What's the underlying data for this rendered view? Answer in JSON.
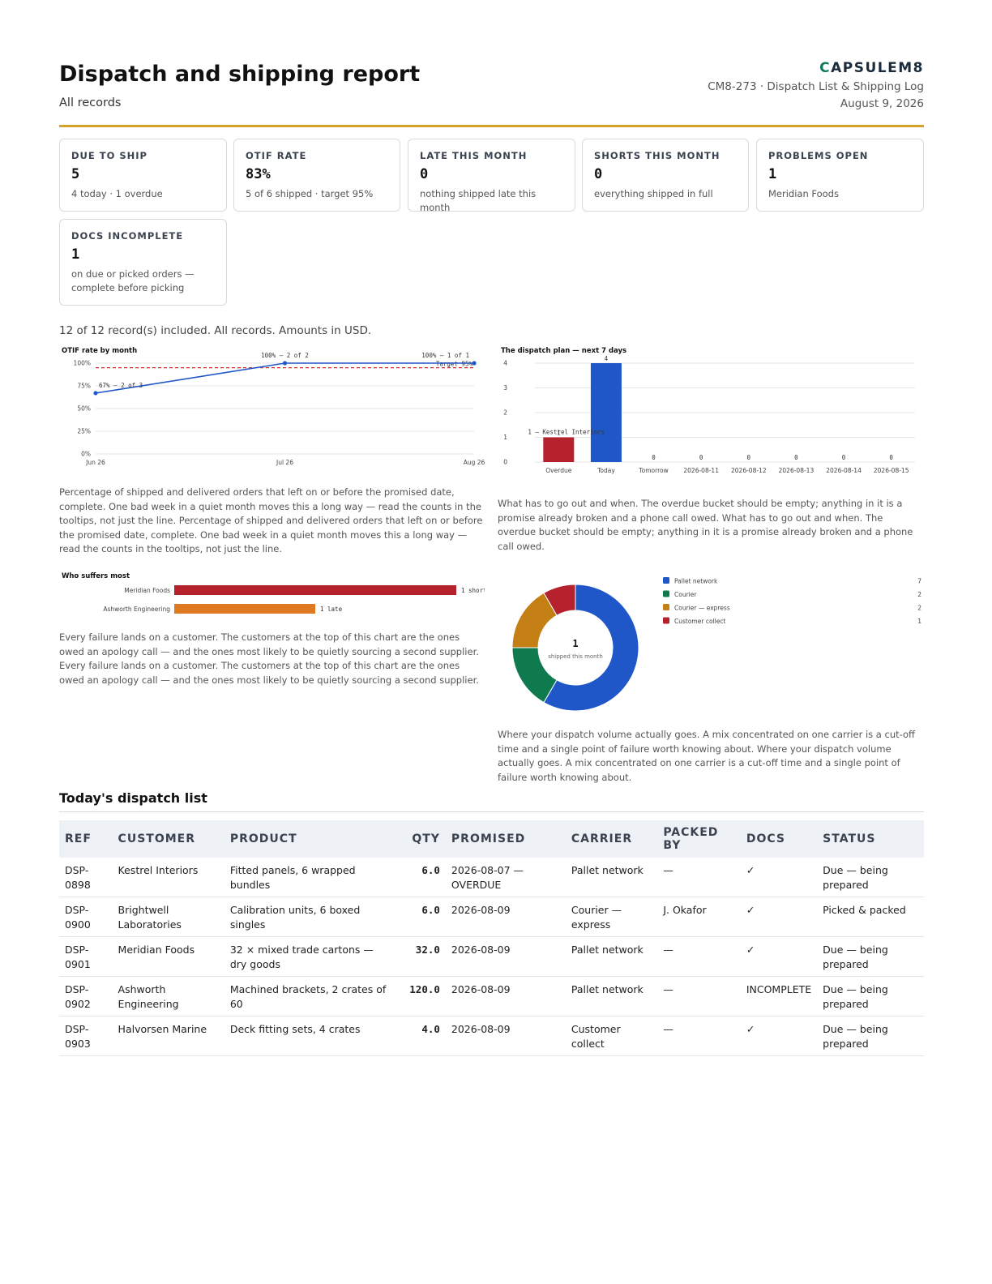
{
  "header": {
    "title": "Dispatch and shipping report",
    "subtitle": "All records",
    "brand_c": "C",
    "brand_rest": "APSULEM8",
    "doc_id": "CM8-273 · Dispatch List & Shipping Log",
    "date": "August 9, 2026"
  },
  "kpis": [
    {
      "label": "DUE TO SHIP",
      "value": "5",
      "note": "4 today · 1 overdue"
    },
    {
      "label": "OTIF RATE",
      "value": "83%",
      "note": "5 of 6 shipped · target 95%"
    },
    {
      "label": "LATE THIS MONTH",
      "value": "0",
      "note": "nothing shipped late this month"
    },
    {
      "label": "SHORTS THIS MONTH",
      "value": "0",
      "note": "everything shipped in full"
    },
    {
      "label": "PROBLEMS OPEN",
      "value": "1",
      "note": "Meridian Foods"
    },
    {
      "label": "DOCS INCOMPLETE",
      "value": "1",
      "note": "on due or picked orders — complete before picking"
    }
  ],
  "summary": "12 of 12 record(s) included. All records. Amounts in USD.",
  "chart_data": [
    {
      "type": "line",
      "title": "OTIF rate by month",
      "x": [
        "Jun 26",
        "Jul 26",
        "Aug 26"
      ],
      "values": [
        67,
        100,
        100
      ],
      "point_labels": [
        "67% — 2 of 3",
        "100% — 2 of 2",
        "100% — 1 of 1"
      ],
      "target": 95,
      "target_label": "Target 95%",
      "yticks": [
        "0%",
        "25%",
        "50%",
        "75%",
        "100%"
      ],
      "ylim": [
        0,
        100
      ],
      "color": "#1f57c9",
      "target_color": "#d93030"
    },
    {
      "type": "bar",
      "title": "The dispatch plan — next 7 days",
      "categories": [
        "Overdue",
        "Today",
        "Tomorrow",
        "2026-08-11",
        "2026-08-12",
        "2026-08-13",
        "2026-08-14",
        "2026-08-15"
      ],
      "values": [
        1,
        4,
        0,
        0,
        0,
        0,
        0,
        0
      ],
      "value_labels": [
        "1",
        "4",
        "0",
        "0",
        "0",
        "0",
        "0",
        "0"
      ],
      "overdue_annotation": "1 — Kestrel Interiors",
      "yticks": [
        "0",
        "1",
        "2",
        "3",
        "4"
      ],
      "ylim": [
        0,
        4
      ],
      "colors": {
        "overdue": "#b5222e",
        "normal": "#1f57c9"
      }
    },
    {
      "type": "bar",
      "orientation": "horizontal",
      "title": "Who suffers most",
      "categories": [
        "Meridian Foods",
        "Ashworth Engineering"
      ],
      "values": [
        1,
        1
      ],
      "labels": [
        "1 short",
        "1 late"
      ],
      "colors": [
        "#b5222e",
        "#e07a22"
      ]
    },
    {
      "type": "pie",
      "center_value": "1",
      "center_label": "shipped this month",
      "slices": [
        {
          "name": "Pallet network",
          "value": 7,
          "color": "#1f57c9"
        },
        {
          "name": "Courier",
          "value": 2,
          "color": "#0f7a4e"
        },
        {
          "name": "Courier — express",
          "value": 2,
          "color": "#c47f15"
        },
        {
          "name": "Customer collect",
          "value": 1,
          "color": "#b5222e"
        }
      ]
    }
  ],
  "descriptions": {
    "otif": "Percentage of shipped and delivered orders that left on or before the promised date, complete. One bad week in a quiet month moves this a long way — read the counts in the tooltips, not just the line. Percentage of shipped and delivered orders that left on or before the promised date, complete. One bad week in a quiet month moves this a long way — read the counts in the tooltips, not just the line.",
    "plan": "What has to go out and when. The overdue bucket should be empty; anything in it is a promise already broken and a phone call owed. What has to go out and when. The overdue bucket should be empty; anything in it is a promise already broken and a phone call owed.",
    "suffers": "Every failure lands on a customer. The customers at the top of this chart are the ones owed an apology call — and the ones most likely to be quietly sourcing a second supplier. Every failure lands on a customer. The customers at the top of this chart are the ones owed an apology call — and the ones most likely to be quietly sourcing a second supplier.",
    "carrier": "Where your dispatch volume actually goes. A mix concentrated on one carrier is a cut-off time and a single point of failure worth knowing about. Where your dispatch volume actually goes. A mix concentrated on one carrier is a cut-off time and a single point of failure worth knowing about."
  },
  "table": {
    "title": "Today's dispatch list",
    "headers": [
      "REF",
      "CUSTOMER",
      "PRODUCT",
      "QTY",
      "PROMISED",
      "CARRIER",
      "PACKED BY",
      "DOCS",
      "STATUS"
    ],
    "rows": [
      [
        "DSP-0898",
        "Kestrel Interiors",
        "Fitted panels, 6 wrapped bundles",
        "6.0",
        "2026-08-07 — OVERDUE",
        "Pallet network",
        "—",
        "✓",
        "Due — being prepared"
      ],
      [
        "DSP-0900",
        "Brightwell Laboratories",
        "Calibration units, 6 boxed singles",
        "6.0",
        "2026-08-09",
        "Courier — express",
        "J. Okafor",
        "✓",
        "Picked & packed"
      ],
      [
        "DSP-0901",
        "Meridian Foods",
        "32 × mixed trade cartons — dry goods",
        "32.0",
        "2026-08-09",
        "Pallet network",
        "—",
        "✓",
        "Due — being prepared"
      ],
      [
        "DSP-0902",
        "Ashworth Engineering",
        "Machined brackets, 2 crates of 60",
        "120.0",
        "2026-08-09",
        "Pallet network",
        "—",
        "INCOMPLETE",
        "Due — being prepared"
      ],
      [
        "DSP-0903",
        "Halvorsen Marine",
        "Deck fitting sets, 4 crates",
        "4.0",
        "2026-08-09",
        "Customer collect",
        "—",
        "✓",
        "Due — being prepared"
      ]
    ]
  }
}
